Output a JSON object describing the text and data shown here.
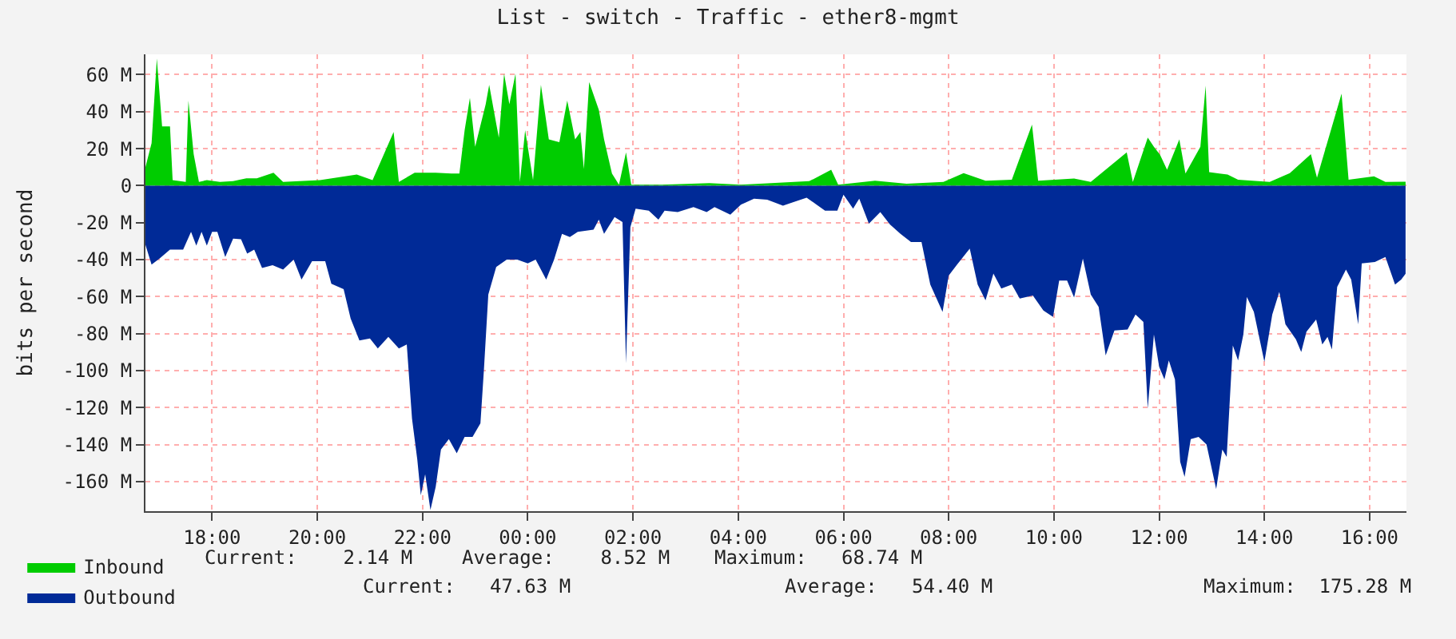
{
  "chart_data": {
    "type": "area",
    "title": "List - switch - Traffic - ether8-mgmt",
    "ylabel": "bits per second",
    "xlim": [
      "--01-01T16:44",
      "--01-02T16:42"
    ],
    "ylim": [
      -176,
      71
    ],
    "xticks": [
      {
        "value": "--01-01T18:00",
        "label": "18:00"
      },
      {
        "value": "--01-01T20:00",
        "label": "20:00"
      },
      {
        "value": "--01-01T22:00",
        "label": "22:00"
      },
      {
        "value": "--01-02T00:00",
        "label": "00:00"
      },
      {
        "value": "--01-02T02:00",
        "label": "02:00"
      },
      {
        "value": "--01-02T04:00",
        "label": "04:00"
      },
      {
        "value": "--01-02T06:00",
        "label": "06:00"
      },
      {
        "value": "--01-02T08:00",
        "label": "08:00"
      },
      {
        "value": "--01-02T10:00",
        "label": "10:00"
      },
      {
        "value": "--01-02T12:00",
        "label": "12:00"
      },
      {
        "value": "--01-02T14:00",
        "label": "14:00"
      },
      {
        "value": "--01-02T16:00",
        "label": "16:00"
      }
    ],
    "yticks": [
      {
        "value": -160,
        "label": "-160 M"
      },
      {
        "value": -140,
        "label": "-140 M"
      },
      {
        "value": -120,
        "label": "-120 M"
      },
      {
        "value": -100,
        "label": "-100 M"
      },
      {
        "value": -80,
        "label": "-80 M"
      },
      {
        "value": -60,
        "label": "-60 M"
      },
      {
        "value": -40,
        "label": "-40 M"
      },
      {
        "value": -20,
        "label": "-20 M"
      },
      {
        "value": 0,
        "label": "0"
      },
      {
        "value": 20,
        "label": "20 M"
      },
      {
        "value": 40,
        "label": "40 M"
      },
      {
        "value": 60,
        "label": "60 M"
      }
    ],
    "grid": true,
    "legend": "bottom left",
    "annotations": [
      "Current:    2.14 M",
      "Average:    8.52 M",
      "Maximum:   68.74 M",
      "Current:   47.63 M",
      "Average:   54.40 M",
      "Maximum:  175.28 M"
    ],
    "series": [
      {
        "name": "Inbound",
        "color": "#00cc00",
        "x": [
          "--01-01T16:44",
          "--01-01T16:51",
          "--01-01T16:57",
          "--01-01T17:03",
          "--01-01T17:12",
          "--01-01T17:15",
          "--01-01T17:30",
          "--01-01T17:33",
          "--01-01T17:39",
          "--01-01T17:45",
          "--01-01T17:54",
          "--01-01T18:09",
          "--01-01T18:24",
          "--01-01T18:39",
          "--01-01T18:51",
          "--01-01T19:10",
          "--01-01T19:21",
          "--01-01T20:03",
          "--01-01T20:45",
          "--01-01T21:03",
          "--01-01T21:27",
          "--01-01T21:33",
          "--01-01T21:51",
          "--01-01T22:15",
          "--01-01T22:33",
          "--01-01T22:42",
          "--01-01T22:48",
          "--01-01T22:54",
          "--01-01T23:00",
          "--01-01T23:12",
          "--01-01T23:16",
          "--01-01T23:24",
          "--01-01T23:27",
          "--01-01T23:33",
          "--01-01T23:39",
          "--01-01T23:46",
          "--01-01T23:51",
          "--01-01T23:57",
          "--01-02T00:06",
          "--01-02T00:15",
          "--01-02T00:24",
          "--01-02T00:36",
          "--01-02T00:45",
          "--01-02T00:54",
          "--01-02T01:00",
          "--01-02T01:04",
          "--01-02T01:10",
          "--01-02T01:21",
          "--01-02T01:27",
          "--01-02T01:36",
          "--01-02T01:44",
          "--01-02T01:52",
          "--01-02T01:58",
          "--01-02T02:33",
          "--01-02T03:27",
          "--01-02T04:03",
          "--01-02T05:21",
          "--01-02T05:46",
          "--01-02T05:54",
          "--01-02T06:36",
          "--01-02T07:12",
          "--01-02T07:54",
          "--01-02T08:17",
          "--01-02T08:42",
          "--01-02T09:12",
          "--01-02T09:35",
          "--01-02T09:42",
          "--01-02T10:23",
          "--01-02T10:42",
          "--01-02T11:23",
          "--01-02T11:30",
          "--01-02T11:47",
          "--01-02T11:54",
          "--01-02T12:01",
          "--01-02T12:09",
          "--01-02T12:23",
          "--01-02T12:30",
          "--01-02T12:47",
          "--01-02T12:53",
          "--01-02T12:57",
          "--01-02T13:18",
          "--01-02T13:30",
          "--01-02T14:06",
          "--01-02T14:29",
          "--01-02T14:53",
          "--01-02T15:00",
          "--01-02T15:28",
          "--01-02T15:36",
          "--01-02T16:05",
          "--01-02T16:18",
          "--01-02T16:41"
        ],
        "values": [
          10,
          23,
          68.7,
          32,
          32,
          3,
          2,
          46,
          17,
          2,
          3,
          2,
          2.4,
          4,
          4,
          7,
          2,
          3,
          6,
          3,
          29,
          2,
          7,
          7,
          6.5,
          6.5,
          30,
          47.5,
          21,
          44,
          54.5,
          33.5,
          26,
          60.5,
          44,
          60.5,
          2,
          30,
          3,
          54.5,
          25,
          23.5,
          46,
          25,
          29,
          9,
          56,
          41,
          25,
          6.5,
          0.5,
          18,
          0.5,
          0.5,
          1.4,
          0.5,
          2.4,
          8.6,
          0.5,
          2.7,
          1,
          2,
          6.8,
          2.7,
          3.2,
          33,
          2.7,
          3.8,
          2,
          18,
          2,
          26,
          21,
          16.7,
          8.6,
          25,
          6.5,
          21,
          54,
          7.3,
          6,
          3.2,
          2,
          6.8,
          17,
          4.3,
          49.7,
          3.2,
          5,
          2,
          2.14
        ]
      },
      {
        "name": "Outbound",
        "color": "#002a97",
        "x": [
          "--01-01T16:44",
          "--01-01T16:51",
          "--01-01T17:00",
          "--01-01T17:12",
          "--01-01T17:27",
          "--01-01T17:36",
          "--01-01T17:42",
          "--01-01T17:48",
          "--01-01T17:54",
          "--01-01T18:00",
          "--01-01T18:06",
          "--01-01T18:15",
          "--01-01T18:24",
          "--01-01T18:33",
          "--01-01T18:40",
          "--01-01T18:48",
          "--01-01T18:57",
          "--01-01T19:09",
          "--01-01T19:21",
          "--01-01T19:33",
          "--01-01T19:42",
          "--01-01T19:54",
          "--01-01T20:09",
          "--01-01T20:16",
          "--01-01T20:30",
          "--01-01T20:38",
          "--01-01T20:48",
          "--01-01T21:00",
          "--01-01T21:09",
          "--01-01T21:21",
          "--01-01T21:33",
          "--01-01T21:42",
          "--01-01T21:48",
          "--01-01T21:54",
          "--01-01T21:58",
          "--01-01T22:03",
          "--01-01T22:09",
          "--01-01T22:15",
          "--01-01T22:21",
          "--01-01T22:30",
          "--01-01T22:39",
          "--01-01T22:48",
          "--01-01T22:57",
          "--01-01T23:06",
          "--01-01T23:10",
          "--01-01T23:15",
          "--01-01T23:24",
          "--01-01T23:36",
          "--01-01T23:48",
          "--01-02T00:00",
          "--01-02T00:09",
          "--01-02T00:21",
          "--01-02T00:30",
          "--01-02T00:39",
          "--01-02T00:48",
          "--01-02T00:57",
          "--01-02T01:15",
          "--01-02T01:21",
          "--01-02T01:27",
          "--01-02T01:39",
          "--01-02T01:48",
          "--01-02T01:52",
          "--01-02T01:57",
          "--01-02T02:03",
          "--01-02T02:18",
          "--01-02T02:29",
          "--01-02T02:36",
          "--01-02T02:51",
          "--01-02T03:09",
          "--01-02T03:24",
          "--01-02T03:33",
          "--01-02T03:51",
          "--01-02T04:03",
          "--01-02T04:18",
          "--01-02T04:33",
          "--01-02T04:51",
          "--01-02T05:18",
          "--01-02T05:39",
          "--01-02T05:53",
          "--01-02T06:00",
          "--01-02T06:11",
          "--01-02T06:18",
          "--01-02T06:29",
          "--01-02T06:42",
          "--01-02T06:53",
          "--01-02T07:05",
          "--01-02T07:17",
          "--01-02T07:29",
          "--01-02T07:39",
          "--01-02T07:53",
          "--01-02T08:00",
          "--01-02T08:09",
          "--01-02T08:24",
          "--01-02T08:33",
          "--01-02T08:42",
          "--01-02T08:51",
          "--01-02T09:00",
          "--01-02T09:12",
          "--01-02T09:21",
          "--01-02T09:36",
          "--01-02T09:48",
          "--01-02T09:59",
          "--01-02T10:06",
          "--01-02T10:15",
          "--01-02T10:23",
          "--01-02T10:33",
          "--01-02T10:42",
          "--01-02T10:51",
          "--01-02T10:59",
          "--01-02T11:09",
          "--01-02T11:24",
          "--01-02T11:33",
          "--01-02T11:42",
          "--01-02T11:47",
          "--01-02T11:54",
          "--01-02T12:00",
          "--01-02T12:06",
          "--01-02T12:11",
          "--01-02T12:18",
          "--01-02T12:24",
          "--01-02T12:29",
          "--01-02T12:36",
          "--01-02T12:45",
          "--01-02T12:54",
          "--01-02T13:05",
          "--01-02T13:12",
          "--01-02T13:17",
          "--01-02T13:24",
          "--01-02T13:30",
          "--01-02T13:36",
          "--01-02T13:40",
          "--01-02T13:48",
          "--01-02T14:00",
          "--01-02T14:09",
          "--01-02T14:17",
          "--01-02T14:24",
          "--01-02T14:36",
          "--01-02T14:42",
          "--01-02T14:48",
          "--01-02T14:59",
          "--01-02T15:06",
          "--01-02T15:12",
          "--01-02T15:17",
          "--01-02T15:23",
          "--01-02T15:33",
          "--01-02T15:39",
          "--01-02T15:47",
          "--01-02T15:51",
          "--01-02T16:06",
          "--01-02T16:18",
          "--01-02T16:29",
          "--01-02T16:36",
          "--01-02T16:41"
        ],
        "values": [
          -32,
          -42.7,
          -39.4,
          -34.6,
          -34.6,
          -25,
          -32.4,
          -25,
          -32.4,
          -25,
          -25,
          -38.6,
          -28.6,
          -29,
          -36.7,
          -34.6,
          -44.5,
          -43,
          -45.4,
          -40,
          -50.8,
          -40.8,
          -40.8,
          -53,
          -56,
          -71.8,
          -83.7,
          -82.6,
          -88,
          -81.8,
          -88,
          -85.9,
          -126,
          -148,
          -167.4,
          -156,
          -175.3,
          -162.8,
          -142.6,
          -137,
          -144.7,
          -135.8,
          -135.8,
          -128.5,
          -99.4,
          -58.9,
          -44,
          -40,
          -40,
          -42,
          -40,
          -50.8,
          -40,
          -26,
          -27.8,
          -25,
          -23.8,
          -18.4,
          -26,
          -17,
          -19.7,
          -96,
          -22.4,
          -12.4,
          -13.5,
          -18.4,
          -13.5,
          -14.3,
          -11.6,
          -14.3,
          -11.6,
          -15.7,
          -10.3,
          -7,
          -7.6,
          -10.8,
          -6.5,
          -13.5,
          -13.5,
          -4.9,
          -12.4,
          -7,
          -20.5,
          -14.3,
          -21,
          -26,
          -30.5,
          -30.5,
          -53.5,
          -68.3,
          -48.6,
          -43,
          -34,
          -53.5,
          -62,
          -47.5,
          -55.6,
          -53.5,
          -61,
          -59.4,
          -67.5,
          -71,
          -51.3,
          -51.3,
          -60.5,
          -39.4,
          -58.9,
          -65.6,
          -91.8,
          -78.3,
          -77.8,
          -69.7,
          -73.7,
          -120.4,
          -80.5,
          -98,
          -104.8,
          -94.5,
          -104.8,
          -149.3,
          -157.4,
          -137,
          -135.8,
          -139.9,
          -164,
          -142.6,
          -146.6,
          -86.4,
          -94.5,
          -80.5,
          -60.2,
          -68.3,
          -95.3,
          -69.7,
          -57.5,
          -75,
          -83.2,
          -90,
          -79,
          -72.4,
          -85.9,
          -81.8,
          -88.6,
          -54.8,
          -45.4,
          -50.8,
          -75,
          -42,
          -41.3,
          -38.6,
          -53.5,
          -50.8,
          -47.6
        ]
      }
    ]
  }
}
